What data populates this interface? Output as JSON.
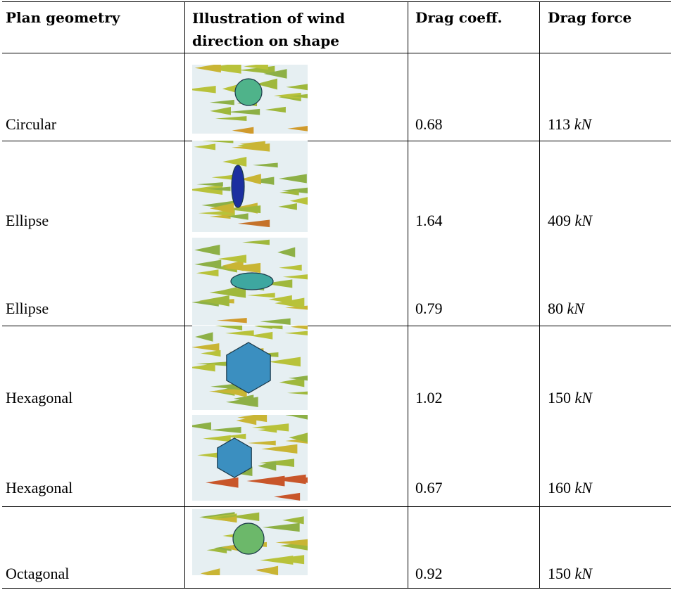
{
  "header": [
    "Plan geometry",
    "Illustration of wind direction on shape",
    "Drag coeff.",
    "Drag force"
  ],
  "rows": [
    {
      "geometry": "Circular",
      "drag_coeff": "0.68",
      "drag_force": {
        "value": "113",
        "unit": "kN"
      }
    },
    {
      "geometry": "Ellipse",
      "drag_coeff": "1.64",
      "drag_force": {
        "value": "409",
        "unit": "kN"
      }
    },
    {
      "geometry": "Ellipse",
      "drag_coeff": "0.79",
      "drag_force": {
        "value": "80",
        "unit": "kN"
      }
    },
    {
      "geometry": "Hexagonal",
      "drag_coeff": "1.02",
      "drag_force": {
        "value": "150",
        "unit": "kN"
      }
    },
    {
      "geometry": "Hexagonal",
      "drag_coeff": "0.67",
      "drag_force": {
        "value": "160",
        "unit": "kN"
      }
    },
    {
      "geometry": "Octagonal",
      "drag_coeff": "0.92",
      "drag_force": {
        "value": "150",
        "unit": "kN"
      }
    }
  ]
}
